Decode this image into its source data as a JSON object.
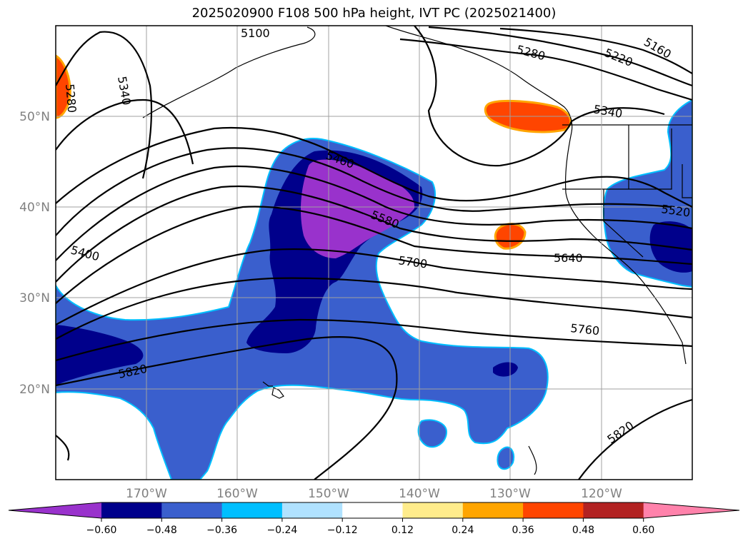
{
  "title": "2025020900 F108 500 hPa height, IVT PC (2025021400)",
  "lat_labels": [
    "50°N",
    "40°N",
    "30°N",
    "20°N"
  ],
  "lon_labels": [
    "170°W",
    "160°W",
    "150°W",
    "140°W",
    "130°W",
    "120°W"
  ],
  "contour_labels": [
    "5100",
    "5340",
    "5280",
    "5460",
    "5580",
    "5700",
    "5640",
    "5760",
    "5820",
    "5400",
    "5820",
    "5280",
    "5220",
    "5160",
    "5340",
    "5520"
  ],
  "colorbar": {
    "colors": [
      "#9932cc",
      "#00008b",
      "#3a5fcd",
      "#00bfff",
      "#b0e2ff",
      "#ffffff",
      "#ffec8b",
      "#ffa500",
      "#ff4500",
      "#b22222",
      "#ff82ab"
    ],
    "tick_labels": [
      "−0.60",
      "−0.48",
      "−0.36",
      "−0.24",
      "−0.12",
      "0.12",
      "0.24",
      "0.36",
      "0.48",
      "0.60"
    ]
  }
}
